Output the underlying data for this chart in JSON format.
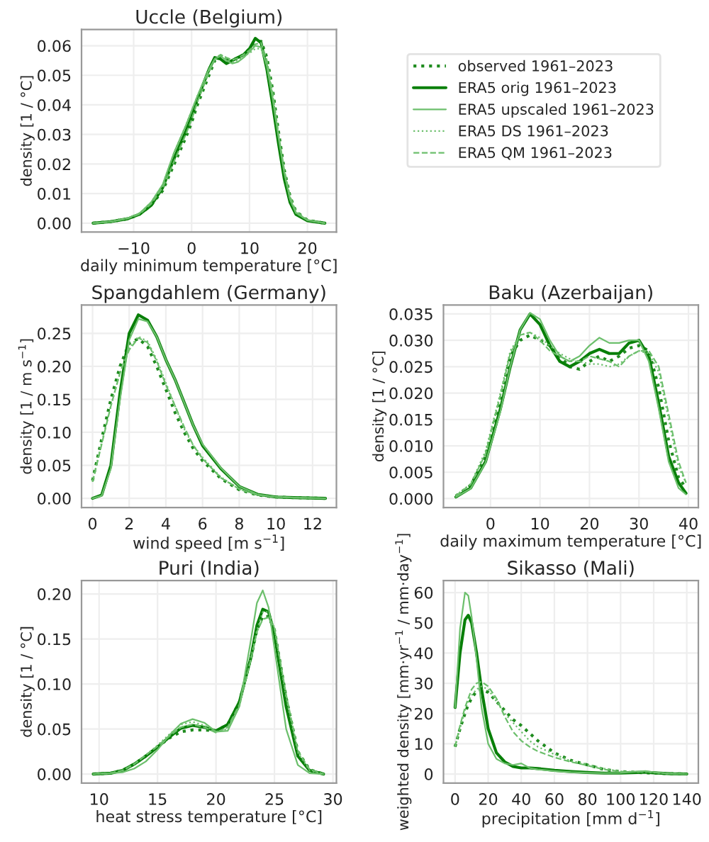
{
  "chart_data": [
    {
      "type": "line",
      "title": "Uccle (Belgium)",
      "xlabel": "daily minimum temperature [°C]",
      "ylabel": "density [1 / °C]",
      "grid": true,
      "legend": "right",
      "x": [
        -17,
        -14,
        -11,
        -9,
        -7,
        -5,
        -3,
        -1,
        0,
        1,
        3,
        4,
        5,
        6,
        7,
        8,
        9,
        10,
        11,
        12,
        13,
        14,
        15,
        16,
        17,
        18,
        20,
        23
      ],
      "xlim": [
        -19,
        25
      ],
      "xticks": [
        {
          "value": -10,
          "label": "−10"
        },
        0,
        10,
        20
      ],
      "ylim": [
        -0.003,
        0.0655
      ],
      "yticks": [
        {
          "value": 0,
          "label": "0.00"
        },
        {
          "value": 0.01,
          "label": "0.01"
        },
        {
          "value": 0.02,
          "label": "0.02"
        },
        {
          "value": 0.03,
          "label": "0.03"
        },
        {
          "value": 0.04,
          "label": "0.04"
        },
        {
          "value": 0.05,
          "label": "0.05"
        },
        {
          "value": 0.06,
          "label": "0.06"
        }
      ],
      "series": [
        {
          "name": "observed 1961–2023",
          "color": "#1f8c1f",
          "line_style": "dotted",
          "values": [
            0,
            0.0005,
            0.0015,
            0.003,
            0.006,
            0.011,
            0.02,
            0.029,
            0.034,
            0.04,
            0.05,
            0.055,
            0.0565,
            0.0555,
            0.055,
            0.056,
            0.057,
            0.059,
            0.061,
            0.0615,
            0.056,
            0.045,
            0.031,
            0.018,
            0.009,
            0.004,
            0.001,
            0
          ]
        },
        {
          "name": "ERA5 orig 1961–2023",
          "color": "#087f08",
          "line_style": "solid",
          "values": [
            0,
            0.0005,
            0.0015,
            0.003,
            0.006,
            0.012,
            0.022,
            0.031,
            0.036,
            0.042,
            0.052,
            0.056,
            0.0555,
            0.054,
            0.055,
            0.056,
            0.057,
            0.059,
            0.0625,
            0.061,
            0.052,
            0.04,
            0.027,
            0.015,
            0.007,
            0.003,
            0.0008,
            0
          ]
        },
        {
          "name": "ERA5 upscaled 1961–2023",
          "color": "#6cbf6c",
          "line_style": "solid",
          "values": [
            0,
            0.0005,
            0.0017,
            0.0033,
            0.007,
            0.013,
            0.024,
            0.033,
            0.038,
            0.043,
            0.052,
            0.0555,
            0.0565,
            0.055,
            0.054,
            0.0545,
            0.056,
            0.058,
            0.06,
            0.0595,
            0.053,
            0.042,
            0.029,
            0.017,
            0.008,
            0.0035,
            0.001,
            0
          ]
        },
        {
          "name": "ERA5 DS 1961–2023",
          "color": "#6cbf6c",
          "line_style": "dotted",
          "values": [
            0,
            0.0005,
            0.0017,
            0.0033,
            0.007,
            0.013,
            0.024,
            0.033,
            0.038,
            0.043,
            0.052,
            0.0555,
            0.057,
            0.0555,
            0.0545,
            0.055,
            0.0565,
            0.0575,
            0.059,
            0.059,
            0.054,
            0.043,
            0.03,
            0.017,
            0.008,
            0.0035,
            0.001,
            0
          ]
        },
        {
          "name": "ERA5 QM 1961–2023",
          "color": "#6cbf6c",
          "line_style": "dashed",
          "values": [
            0,
            0.0005,
            0.0016,
            0.0031,
            0.0065,
            0.012,
            0.021,
            0.03,
            0.035,
            0.041,
            0.051,
            0.0555,
            0.057,
            0.056,
            0.0552,
            0.0558,
            0.057,
            0.0585,
            0.0605,
            0.061,
            0.055,
            0.044,
            0.03,
            0.018,
            0.009,
            0.004,
            0.001,
            0
          ]
        }
      ]
    },
    {
      "type": "line",
      "title": "Spangdahlem (Germany)",
      "xlabel": "wind speed [m s$^{−1}$]",
      "ylabel": "density [1 / m s$^{−1}$]",
      "grid": true,
      "x": [
        0,
        0.5,
        1,
        1.5,
        2,
        2.5,
        3,
        3.5,
        4,
        4.5,
        5,
        5.5,
        6,
        7,
        8,
        9,
        10,
        11,
        12.7
      ],
      "xlim": [
        -0.6,
        13.3
      ],
      "xticks": [
        0,
        2,
        4,
        6,
        8,
        10,
        12
      ],
      "ylim": [
        -0.014,
        0.293
      ],
      "yticks": [
        {
          "value": 0,
          "label": "0.00"
        },
        {
          "value": 0.05,
          "label": "0.05"
        },
        {
          "value": 0.1,
          "label": "0.10"
        },
        {
          "value": 0.15,
          "label": "0.15"
        },
        {
          "value": 0.2,
          "label": "0.20"
        },
        {
          "value": 0.25,
          "label": "0.25"
        }
      ],
      "series": [
        {
          "color": "#1f8c1f",
          "line_style": "dotted",
          "values": [
            0.027,
            0.09,
            0.15,
            0.2,
            0.235,
            0.242,
            0.23,
            0.2,
            0.165,
            0.13,
            0.1,
            0.075,
            0.057,
            0.03,
            0.013,
            0.005,
            0.002,
            0.001,
            0
          ]
        },
        {
          "color": "#087f08",
          "line_style": "solid",
          "values": [
            0,
            0.005,
            0.05,
            0.16,
            0.25,
            0.278,
            0.27,
            0.245,
            0.21,
            0.18,
            0.145,
            0.11,
            0.08,
            0.045,
            0.018,
            0.006,
            0.002,
            0.001,
            0
          ]
        },
        {
          "color": "#6cbf6c",
          "line_style": "solid",
          "values": [
            0,
            0.004,
            0.045,
            0.15,
            0.24,
            0.272,
            0.268,
            0.245,
            0.21,
            0.18,
            0.145,
            0.11,
            0.082,
            0.046,
            0.018,
            0.006,
            0.002,
            0.001,
            0
          ]
        },
        {
          "color": "#6cbf6c",
          "line_style": "dotted",
          "values": [
            0.025,
            0.085,
            0.14,
            0.19,
            0.228,
            0.245,
            0.238,
            0.21,
            0.175,
            0.14,
            0.105,
            0.08,
            0.062,
            0.032,
            0.014,
            0.005,
            0.002,
            0.001,
            0
          ]
        },
        {
          "color": "#6cbf6c",
          "line_style": "dashed",
          "values": [
            0.025,
            0.082,
            0.14,
            0.19,
            0.225,
            0.243,
            0.236,
            0.208,
            0.172,
            0.14,
            0.108,
            0.08,
            0.06,
            0.031,
            0.014,
            0.005,
            0.002,
            0.001,
            0
          ]
        }
      ]
    },
    {
      "type": "line",
      "title": "Baku (Azerbaijan)",
      "xlabel": "daily maximum temperature [°C]",
      "ylabel": "density [1 / °C]",
      "grid": true,
      "x": [
        -7,
        -4,
        -1,
        2,
        4,
        6,
        8,
        10,
        12,
        14,
        16,
        18,
        20,
        22,
        24,
        26,
        28,
        30,
        32,
        34,
        36,
        38,
        39.5
      ],
      "xlim": [
        -9.5,
        42
      ],
      "xticks": [
        0,
        10,
        20,
        30,
        40
      ],
      "ylim": [
        -0.0017,
        0.0367
      ],
      "yticks": [
        {
          "value": 0,
          "label": "0.000"
        },
        {
          "value": 0.005,
          "label": "0.005"
        },
        {
          "value": 0.01,
          "label": "0.010"
        },
        {
          "value": 0.015,
          "label": "0.015"
        },
        {
          "value": 0.02,
          "label": "0.020"
        },
        {
          "value": 0.025,
          "label": "0.025"
        },
        {
          "value": 0.03,
          "label": "0.030"
        },
        {
          "value": 0.035,
          "label": "0.035"
        }
      ],
      "series": [
        {
          "color": "#1f8c1f",
          "line_style": "dotted",
          "values": [
            0.0005,
            0.0025,
            0.008,
            0.019,
            0.027,
            0.03,
            0.031,
            0.03,
            0.029,
            0.027,
            0.025,
            0.0245,
            0.026,
            0.027,
            0.026,
            0.027,
            0.0285,
            0.029,
            0.028,
            0.021,
            0.011,
            0.004,
            0.002
          ]
        },
        {
          "color": "#087f08",
          "line_style": "solid",
          "values": [
            0.0003,
            0.002,
            0.007,
            0.017,
            0.025,
            0.032,
            0.035,
            0.033,
            0.029,
            0.026,
            0.025,
            0.026,
            0.0275,
            0.0283,
            0.0275,
            0.0275,
            0.0295,
            0.03,
            0.027,
            0.018,
            0.008,
            0.003,
            0.001
          ]
        },
        {
          "color": "#6cbf6c",
          "line_style": "solid",
          "values": [
            0.0003,
            0.0019,
            0.0068,
            0.0165,
            0.025,
            0.032,
            0.0352,
            0.034,
            0.03,
            0.027,
            0.026,
            0.027,
            0.029,
            0.0305,
            0.0295,
            0.0295,
            0.03,
            0.03,
            0.026,
            0.017,
            0.007,
            0.002,
            0.0008
          ]
        },
        {
          "color": "#6cbf6c",
          "line_style": "dotted",
          "values": [
            0.0006,
            0.0028,
            0.009,
            0.02,
            0.028,
            0.031,
            0.0315,
            0.0305,
            0.029,
            0.0275,
            0.0265,
            0.026,
            0.0255,
            0.0255,
            0.025,
            0.0255,
            0.027,
            0.028,
            0.0275,
            0.024,
            0.015,
            0.006,
            0.003
          ]
        },
        {
          "color": "#6cbf6c",
          "line_style": "dashed",
          "values": [
            0.0005,
            0.0027,
            0.0085,
            0.0195,
            0.0275,
            0.031,
            0.0315,
            0.03,
            0.028,
            0.027,
            0.026,
            0.026,
            0.027,
            0.0265,
            0.026,
            0.025,
            0.027,
            0.028,
            0.028,
            0.025,
            0.016,
            0.007,
            0.003
          ]
        }
      ]
    },
    {
      "type": "line",
      "title": "Puri (India)",
      "xlabel": "heat stress temperature [°C]",
      "ylabel": "density [1 / °C]",
      "grid": true,
      "x": [
        9.5,
        11,
        12,
        13,
        14,
        15,
        16,
        17,
        18,
        19,
        20,
        21,
        22,
        23,
        23.5,
        24,
        24.5,
        25,
        26,
        27,
        28,
        29.2
      ],
      "xlim": [
        8.5,
        30.3
      ],
      "xticks": [
        10,
        15,
        20,
        25,
        30
      ],
      "ylim": [
        -0.01,
        0.215
      ],
      "yticks": [
        {
          "value": 0,
          "label": "0.00"
        },
        {
          "value": 0.05,
          "label": "0.05"
        },
        {
          "value": 0.1,
          "label": "0.10"
        },
        {
          "value": 0.15,
          "label": "0.15"
        },
        {
          "value": 0.2,
          "label": "0.20"
        }
      ],
      "series": [
        {
          "color": "#1f8c1f",
          "line_style": "dotted",
          "values": [
            0,
            0.001,
            0.004,
            0.011,
            0.02,
            0.03,
            0.04,
            0.047,
            0.049,
            0.049,
            0.048,
            0.055,
            0.08,
            0.13,
            0.16,
            0.175,
            0.175,
            0.16,
            0.085,
            0.025,
            0.005,
            0
          ]
        },
        {
          "color": "#087f08",
          "line_style": "solid",
          "values": [
            0,
            0.001,
            0.004,
            0.011,
            0.02,
            0.03,
            0.041,
            0.051,
            0.054,
            0.052,
            0.048,
            0.055,
            0.08,
            0.13,
            0.165,
            0.183,
            0.18,
            0.155,
            0.075,
            0.02,
            0.004,
            0
          ]
        },
        {
          "color": "#6cbf6c",
          "line_style": "solid",
          "values": [
            0,
            0.001,
            0.002,
            0.006,
            0.014,
            0.027,
            0.043,
            0.056,
            0.061,
            0.057,
            0.047,
            0.048,
            0.075,
            0.15,
            0.19,
            0.204,
            0.185,
            0.14,
            0.05,
            0.01,
            0.001,
            0
          ]
        },
        {
          "color": "#6cbf6c",
          "line_style": "dotted",
          "values": [
            0,
            0.001,
            0.004,
            0.011,
            0.021,
            0.032,
            0.044,
            0.055,
            0.058,
            0.054,
            0.047,
            0.05,
            0.075,
            0.13,
            0.16,
            0.18,
            0.18,
            0.162,
            0.085,
            0.024,
            0.004,
            0
          ]
        },
        {
          "color": "#6cbf6c",
          "line_style": "dashed",
          "values": [
            0,
            0.001,
            0.004,
            0.011,
            0.021,
            0.031,
            0.042,
            0.052,
            0.055,
            0.052,
            0.046,
            0.052,
            0.077,
            0.128,
            0.158,
            0.172,
            0.174,
            0.162,
            0.088,
            0.026,
            0.005,
            0
          ]
        }
      ]
    },
    {
      "type": "line",
      "title": "Sikasso (Mali)",
      "xlabel": "precipitation [mm d$^{−1}$]",
      "ylabel": "weighted density [mm·yr$^{−1}$ / mm·day$^{−1}$]",
      "grid": true,
      "x": [
        0,
        3,
        6,
        8,
        10,
        13,
        16,
        20,
        25,
        30,
        35,
        40,
        45,
        50,
        60,
        70,
        80,
        90,
        100,
        110,
        115,
        120,
        130,
        140
      ],
      "xlim": [
        -7,
        147
      ],
      "xticks": [
        0,
        20,
        40,
        60,
        80,
        100,
        120,
        140
      ],
      "ylim": [
        -3,
        64
      ],
      "yticks": [
        0,
        10,
        20,
        30,
        40,
        50,
        60
      ],
      "series": [
        {
          "color": "#1f8c1f",
          "line_style": "dotted",
          "values": [
            9,
            15,
            20,
            23,
            25,
            27.5,
            28,
            27,
            24,
            21,
            18,
            16,
            13.5,
            11,
            7,
            4.5,
            3,
            1.5,
            0.8,
            0.5,
            0.4,
            0.3,
            0.1,
            0
          ]
        },
        {
          "color": "#087f08",
          "line_style": "solid",
          "values": [
            22,
            40,
            51,
            52.5,
            50,
            40,
            28,
            15,
            7,
            4,
            2.5,
            2,
            2,
            1.8,
            1.2,
            0.8,
            0.5,
            0.3,
            0.3,
            0.5,
            0.6,
            0.4,
            0.1,
            0
          ]
        },
        {
          "color": "#6cbf6c",
          "line_style": "solid",
          "values": [
            22,
            48,
            60,
            59,
            52,
            38,
            22,
            10,
            5,
            3.5,
            3,
            3.5,
            2,
            1.5,
            1,
            0.6,
            0.4,
            0.3,
            0.4,
            0.8,
            1,
            0.6,
            0.1,
            0
          ]
        },
        {
          "color": "#6cbf6c",
          "line_style": "dotted",
          "values": [
            9,
            15,
            21,
            24,
            26,
            28,
            29,
            28,
            24,
            20,
            17,
            14,
            11,
            9,
            6.5,
            4.3,
            3.2,
            1.8,
            0.8,
            0.7,
            0.7,
            0.5,
            0.1,
            0
          ]
        },
        {
          "color": "#6cbf6c",
          "line_style": "dashed",
          "values": [
            9,
            16,
            22,
            25,
            28,
            30,
            30.5,
            29,
            25,
            19,
            14,
            11,
            9,
            7.5,
            5.5,
            4,
            2.8,
            1.5,
            0.8,
            0.7,
            0.8,
            0.5,
            0.1,
            0
          ]
        }
      ]
    }
  ]
}
